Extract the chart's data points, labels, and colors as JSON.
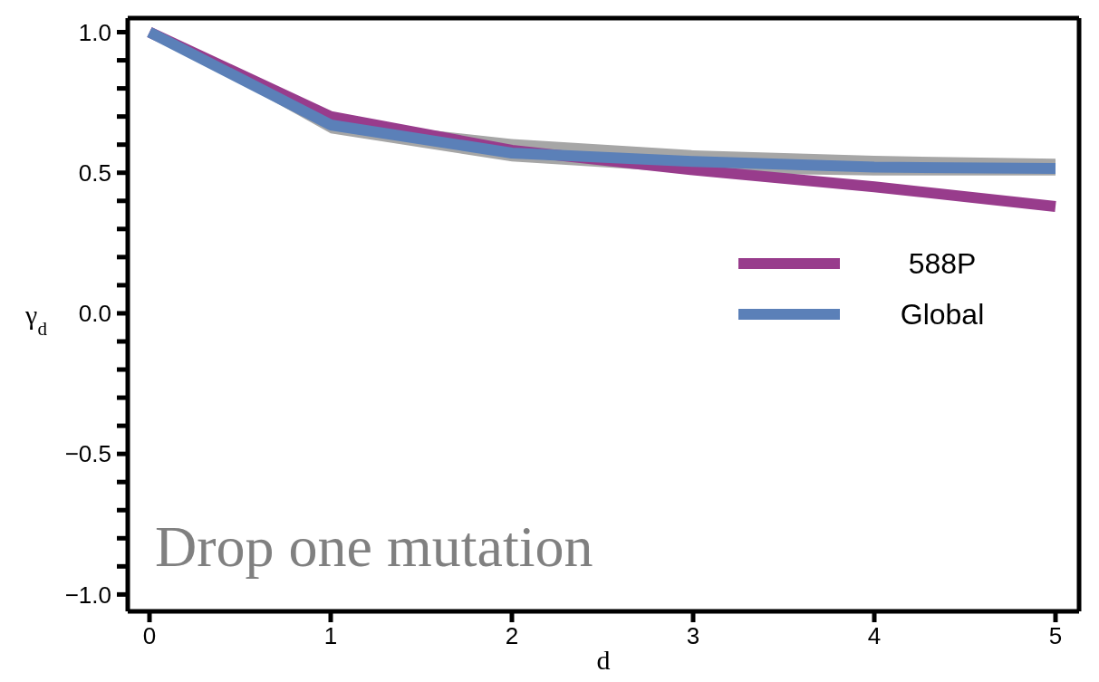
{
  "chart_data": {
    "type": "line",
    "xlabel": "d",
    "ylabel": "γ$_{d}$",
    "x": [
      0,
      1,
      2,
      3,
      4,
      5
    ],
    "series": [
      {
        "name": "588P",
        "color": "#983c8c",
        "values": [
          1.0,
          0.7,
          0.58,
          0.51,
          0.45,
          0.38
        ]
      },
      {
        "name": "Global",
        "color": "#5b80b8",
        "values": [
          1.0,
          0.67,
          0.57,
          0.54,
          0.52,
          0.515
        ],
        "lower": [
          1.0,
          0.64,
          0.54,
          0.5,
          0.49,
          0.49
        ],
        "upper": [
          1.0,
          0.69,
          0.62,
          0.58,
          0.56,
          0.55
        ]
      }
    ],
    "xlim": [
      -0.12,
      5.13
    ],
    "ylim": [
      -1.06,
      1.05
    ],
    "xticks": [
      0,
      1,
      2,
      3,
      4,
      5
    ],
    "yticks": [
      {
        "value": -1,
        "label": "−1.0"
      },
      {
        "value": -0.9,
        "label": null
      },
      {
        "value": -0.8,
        "label": null
      },
      {
        "value": -0.7,
        "label": null
      },
      {
        "value": -0.6,
        "label": null
      },
      {
        "value": -0.5,
        "label": "−0.5"
      },
      {
        "value": -0.4,
        "label": null
      },
      {
        "value": -0.3,
        "label": null
      },
      {
        "value": -0.2,
        "label": null
      },
      {
        "value": -0.1,
        "label": null
      },
      {
        "value": 0,
        "label": "0.0"
      },
      {
        "value": 0.1,
        "label": null
      },
      {
        "value": 0.2,
        "label": null
      },
      {
        "value": 0.3,
        "label": null
      },
      {
        "value": 0.4,
        "label": null
      },
      {
        "value": 0.5,
        "label": "0.5"
      },
      {
        "value": 0.6,
        "label": null
      },
      {
        "value": 0.7,
        "label": null
      },
      {
        "value": 0.8,
        "label": null
      },
      {
        "value": 0.9,
        "label": null
      },
      {
        "value": 1,
        "label": "1.0"
      }
    ],
    "annotations": [
      "Drop one mutation"
    ],
    "legend": "right",
    "grid": false,
    "marker": "none",
    "line_style": "solid"
  }
}
